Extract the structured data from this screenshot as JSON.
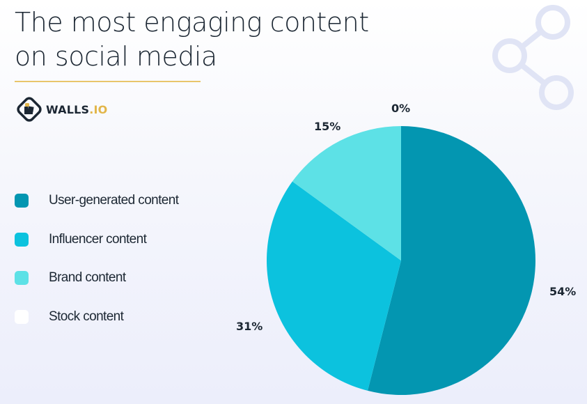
{
  "header": {
    "title_line1": "The most engaging content",
    "title_line2": "on social media",
    "underline_color": "#e8c56a"
  },
  "brand": {
    "logo_icon": "walls-io-logo-icon",
    "name_part1": "WALLS",
    "name_part2": ".IO"
  },
  "decor": {
    "icon": "share-icon",
    "color": "#dfe3f6"
  },
  "legend": {
    "items": [
      {
        "label": "User-generated content",
        "color": "#0396b1"
      },
      {
        "label": "Influencer content",
        "color": "#0cc2de"
      },
      {
        "label": "Brand content",
        "color": "#5de1e6"
      },
      {
        "label": "Stock content",
        "color": "#ffffff"
      }
    ]
  },
  "labels": {
    "ugc": "54%",
    "influencer": "31%",
    "brand": "15%",
    "stock": "0%"
  },
  "chart_data": {
    "type": "pie",
    "title": "The most engaging content on social media",
    "categories": [
      "User-generated content",
      "Influencer content",
      "Brand content",
      "Stock content"
    ],
    "values": [
      54,
      31,
      15,
      0
    ],
    "unit": "%",
    "colors": [
      "#0396b1",
      "#0cc2de",
      "#5de1e6",
      "#ffffff"
    ],
    "start_angle": "12 o'clock, clockwise",
    "legend_position": "left"
  }
}
